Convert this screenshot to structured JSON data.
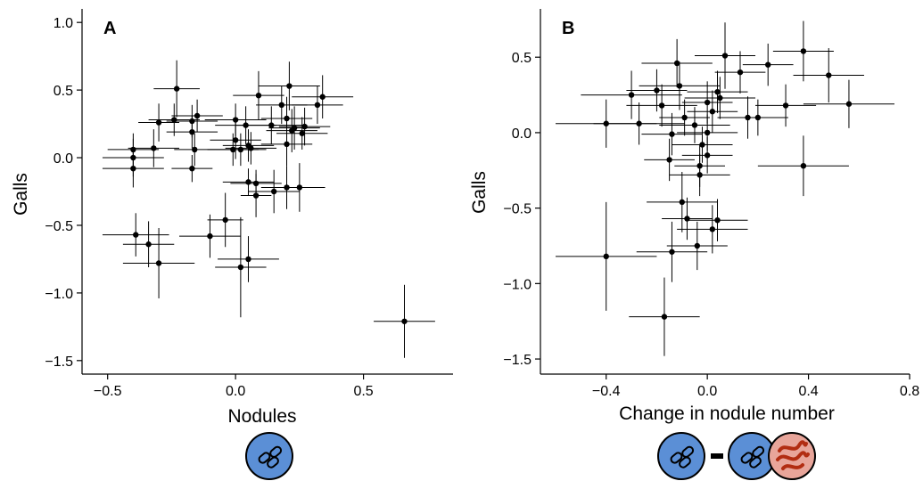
{
  "colors": {
    "points": "#000000",
    "rhizobia_fill": "#5b8fd6",
    "nematode_fill": "#e8a59a",
    "nematode_worm": "#b22d12",
    "icon_stroke": "#000000"
  },
  "icons": {
    "panel_a": [
      "rhizobia-icon"
    ],
    "panel_b": [
      "rhizobia-icon",
      "minus-sign",
      "rhizobia-icon",
      "nematode-icon"
    ]
  },
  "chart_data": [
    {
      "type": "scatter",
      "panel_label": "A",
      "xlabel": "Nodules",
      "ylabel": "Galls",
      "xlim": [
        -0.6,
        0.85
      ],
      "ylim": [
        -1.6,
        1.1
      ],
      "x_ticks": [
        -0.5,
        0.0,
        0.5
      ],
      "x_tick_labels": [
        "−0.5",
        "0.0",
        "0.5"
      ],
      "y_ticks": [
        -1.5,
        -1.0,
        -0.5,
        0.0,
        0.5,
        1.0
      ],
      "y_tick_labels": [
        "−1.5",
        "−1.0",
        "−0.5",
        "0.0",
        "0.5",
        "1.0"
      ],
      "grid": false,
      "error_bars": true,
      "points": [
        {
          "x": -0.23,
          "y": 0.51,
          "xerr": 0.09,
          "yerr": 0.21
        },
        {
          "x": -0.24,
          "y": 0.28,
          "xerr": 0.1,
          "yerr": 0.12
        },
        {
          "x": -0.3,
          "y": 0.26,
          "xerr": 0.08,
          "yerr": 0.14
        },
        {
          "x": -0.17,
          "y": 0.27,
          "xerr": 0.1,
          "yerr": 0.12
        },
        {
          "x": -0.15,
          "y": 0.31,
          "xerr": 0.1,
          "yerr": 0.12
        },
        {
          "x": -0.17,
          "y": 0.19,
          "xerr": 0.1,
          "yerr": 0.12
        },
        {
          "x": -0.16,
          "y": 0.06,
          "xerr": 0.08,
          "yerr": 0.12
        },
        {
          "x": -0.17,
          "y": -0.08,
          "xerr": 0.08,
          "yerr": 0.1
        },
        {
          "x": -0.32,
          "y": 0.07,
          "xerr": 0.1,
          "yerr": 0.14
        },
        {
          "x": -0.4,
          "y": 0.06,
          "xerr": 0.1,
          "yerr": 0.12
        },
        {
          "x": -0.4,
          "y": 0.0,
          "xerr": 0.12,
          "yerr": 0.14
        },
        {
          "x": -0.4,
          "y": -0.08,
          "xerr": 0.12,
          "yerr": 0.14
        },
        {
          "x": -0.39,
          "y": -0.57,
          "xerr": 0.13,
          "yerr": 0.16
        },
        {
          "x": -0.34,
          "y": -0.64,
          "xerr": 0.1,
          "yerr": 0.17
        },
        {
          "x": -0.3,
          "y": -0.78,
          "xerr": 0.14,
          "yerr": 0.26
        },
        {
          "x": -0.1,
          "y": -0.58,
          "xerr": 0.12,
          "yerr": 0.16
        },
        {
          "x": -0.04,
          "y": -0.46,
          "xerr": 0.07,
          "yerr": 0.2
        },
        {
          "x": 0.02,
          "y": -0.81,
          "xerr": 0.1,
          "yerr": 0.37
        },
        {
          "x": 0.05,
          "y": -0.75,
          "xerr": 0.12,
          "yerr": 0.17
        },
        {
          "x": 0.05,
          "y": -0.18,
          "xerr": 0.1,
          "yerr": 0.1
        },
        {
          "x": 0.08,
          "y": -0.19,
          "xerr": 0.1,
          "yerr": 0.1
        },
        {
          "x": 0.08,
          "y": -0.28,
          "xerr": 0.06,
          "yerr": 0.16
        },
        {
          "x": 0.15,
          "y": -0.25,
          "xerr": 0.1,
          "yerr": 0.16
        },
        {
          "x": 0.2,
          "y": -0.22,
          "xerr": 0.1,
          "yerr": 0.16
        },
        {
          "x": 0.25,
          "y": -0.22,
          "xerr": 0.1,
          "yerr": 0.18
        },
        {
          "x": 0.0,
          "y": 0.28,
          "xerr": 0.12,
          "yerr": 0.12
        },
        {
          "x": 0.04,
          "y": 0.24,
          "xerr": 0.12,
          "yerr": 0.14
        },
        {
          "x": 0.14,
          "y": 0.24,
          "xerr": 0.14,
          "yerr": 0.14
        },
        {
          "x": 0.09,
          "y": 0.46,
          "xerr": 0.1,
          "yerr": 0.18
        },
        {
          "x": 0.21,
          "y": 0.53,
          "xerr": 0.12,
          "yerr": 0.18
        },
        {
          "x": 0.18,
          "y": 0.39,
          "xerr": 0.1,
          "yerr": 0.14
        },
        {
          "x": 0.2,
          "y": 0.29,
          "xerr": 0.1,
          "yerr": 0.16
        },
        {
          "x": 0.22,
          "y": 0.2,
          "xerr": 0.1,
          "yerr": 0.16
        },
        {
          "x": 0.23,
          "y": 0.22,
          "xerr": 0.1,
          "yerr": 0.16
        },
        {
          "x": 0.27,
          "y": 0.23,
          "xerr": 0.1,
          "yerr": 0.14
        },
        {
          "x": 0.26,
          "y": 0.18,
          "xerr": 0.1,
          "yerr": 0.12
        },
        {
          "x": 0.32,
          "y": 0.39,
          "xerr": 0.1,
          "yerr": 0.14
        },
        {
          "x": 0.34,
          "y": 0.45,
          "xerr": 0.12,
          "yerr": 0.16
        },
        {
          "x": 0.2,
          "y": 0.1,
          "xerr": 0.1,
          "yerr": 0.16
        },
        {
          "x": 0.0,
          "y": 0.13,
          "xerr": 0.1,
          "yerr": 0.14
        },
        {
          "x": 0.02,
          "y": 0.06,
          "xerr": 0.1,
          "yerr": 0.12
        },
        {
          "x": 0.06,
          "y": 0.07,
          "xerr": 0.1,
          "yerr": 0.12
        },
        {
          "x": -0.01,
          "y": 0.06,
          "xerr": 0.1,
          "yerr": 0.12
        },
        {
          "x": 0.05,
          "y": 0.09,
          "xerr": 0.1,
          "yerr": 0.12
        },
        {
          "x": 0.66,
          "y": -1.21,
          "xerr": 0.12,
          "yerr": 0.27
        }
      ]
    },
    {
      "type": "scatter",
      "panel_label": "B",
      "xlabel": "Change in nodule number",
      "ylabel": "Galls",
      "xlim": [
        -0.66,
        0.8
      ],
      "ylim": [
        -1.6,
        0.82
      ],
      "x_ticks": [
        -0.4,
        0.0,
        0.4,
        0.8
      ],
      "x_tick_labels": [
        "−0.4",
        "0.0",
        "0.4",
        "0.8"
      ],
      "y_ticks": [
        -1.5,
        -1.0,
        -0.5,
        0.0,
        0.5
      ],
      "y_tick_labels": [
        "−1.5",
        "−1.0",
        "−0.5",
        "0.0",
        "0.5"
      ],
      "grid": false,
      "error_bars": true,
      "points": [
        {
          "x": 0.38,
          "y": 0.54,
          "xerr": 0.12,
          "yerr": 0.2
        },
        {
          "x": 0.07,
          "y": 0.51,
          "xerr": 0.12,
          "yerr": 0.22
        },
        {
          "x": 0.24,
          "y": 0.45,
          "xerr": 0.1,
          "yerr": 0.14
        },
        {
          "x": -0.12,
          "y": 0.46,
          "xerr": 0.14,
          "yerr": 0.16
        },
        {
          "x": 0.13,
          "y": 0.4,
          "xerr": 0.1,
          "yerr": 0.14
        },
        {
          "x": 0.48,
          "y": 0.38,
          "xerr": 0.14,
          "yerr": 0.18
        },
        {
          "x": -0.11,
          "y": 0.31,
          "xerr": 0.16,
          "yerr": 0.16
        },
        {
          "x": -0.2,
          "y": 0.28,
          "xerr": 0.12,
          "yerr": 0.14
        },
        {
          "x": -0.3,
          "y": 0.25,
          "xerr": 0.2,
          "yerr": 0.16
        },
        {
          "x": 0.04,
          "y": 0.27,
          "xerr": 0.12,
          "yerr": 0.14
        },
        {
          "x": 0.05,
          "y": 0.23,
          "xerr": 0.14,
          "yerr": 0.14
        },
        {
          "x": -0.18,
          "y": 0.18,
          "xerr": 0.14,
          "yerr": 0.14
        },
        {
          "x": 0.0,
          "y": 0.2,
          "xerr": 0.1,
          "yerr": 0.14
        },
        {
          "x": 0.02,
          "y": 0.14,
          "xerr": 0.1,
          "yerr": 0.14
        },
        {
          "x": -0.09,
          "y": 0.1,
          "xerr": 0.1,
          "yerr": 0.12
        },
        {
          "x": 0.16,
          "y": 0.1,
          "xerr": 0.12,
          "yerr": 0.14
        },
        {
          "x": 0.2,
          "y": 0.1,
          "xerr": 0.12,
          "yerr": 0.12
        },
        {
          "x": 0.31,
          "y": 0.18,
          "xerr": 0.12,
          "yerr": 0.14
        },
        {
          "x": 0.56,
          "y": 0.19,
          "xerr": 0.18,
          "yerr": 0.16
        },
        {
          "x": -0.4,
          "y": 0.06,
          "xerr": 0.2,
          "yerr": 0.16
        },
        {
          "x": -0.27,
          "y": 0.06,
          "xerr": 0.18,
          "yerr": 0.14
        },
        {
          "x": -0.05,
          "y": 0.05,
          "xerr": 0.14,
          "yerr": 0.12
        },
        {
          "x": 0.0,
          "y": 0.0,
          "xerr": 0.12,
          "yerr": 0.12
        },
        {
          "x": -0.14,
          "y": -0.01,
          "xerr": 0.12,
          "yerr": 0.14
        },
        {
          "x": -0.02,
          "y": -0.08,
          "xerr": 0.12,
          "yerr": 0.12
        },
        {
          "x": 0.0,
          "y": -0.15,
          "xerr": 0.1,
          "yerr": 0.12
        },
        {
          "x": -0.15,
          "y": -0.18,
          "xerr": 0.1,
          "yerr": 0.14
        },
        {
          "x": -0.03,
          "y": -0.22,
          "xerr": 0.1,
          "yerr": 0.14
        },
        {
          "x": 0.38,
          "y": -0.22,
          "xerr": 0.18,
          "yerr": 0.2
        },
        {
          "x": -0.03,
          "y": -0.28,
          "xerr": 0.12,
          "yerr": 0.14
        },
        {
          "x": -0.1,
          "y": -0.46,
          "xerr": 0.14,
          "yerr": 0.2
        },
        {
          "x": -0.08,
          "y": -0.57,
          "xerr": 0.1,
          "yerr": 0.14
        },
        {
          "x": 0.04,
          "y": -0.58,
          "xerr": 0.12,
          "yerr": 0.14
        },
        {
          "x": 0.02,
          "y": -0.64,
          "xerr": 0.14,
          "yerr": 0.16
        },
        {
          "x": -0.04,
          "y": -0.75,
          "xerr": 0.12,
          "yerr": 0.16
        },
        {
          "x": -0.14,
          "y": -0.79,
          "xerr": 0.14,
          "yerr": 0.2
        },
        {
          "x": -0.4,
          "y": -0.82,
          "xerr": 0.2,
          "yerr": 0.36
        },
        {
          "x": -0.17,
          "y": -1.22,
          "xerr": 0.14,
          "yerr": 0.26
        }
      ]
    }
  ]
}
